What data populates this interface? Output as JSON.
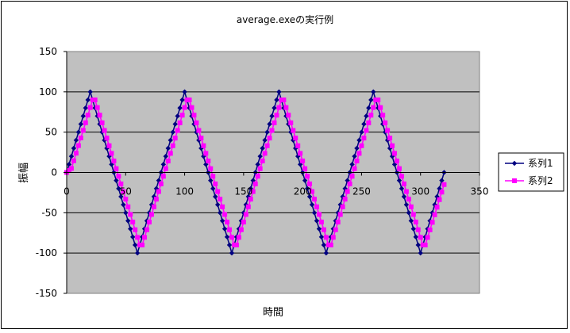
{
  "chart_data": {
    "type": "line",
    "title": "average.exeの実行例",
    "xlabel": "時間",
    "ylabel": "振幅",
    "xlim": [
      0,
      350
    ],
    "ylim": [
      -150,
      150
    ],
    "x_ticks": [
      0,
      50,
      100,
      150,
      200,
      250,
      300,
      350
    ],
    "y_ticks": [
      150,
      100,
      50,
      0,
      -50,
      -100,
      -150
    ],
    "grid": "horizontal",
    "legend_position": "right",
    "colors": {
      "plot_background": "#c0c0c0",
      "series1": "#000080",
      "series2": "#ff00ff"
    },
    "series": [
      {
        "name": "系列1",
        "marker": "diamond",
        "color": "#000080",
        "x": [
          0,
          20,
          60,
          100,
          140,
          180,
          220,
          260,
          300,
          320
        ],
        "y": [
          0,
          100,
          -100,
          100,
          -100,
          100,
          -100,
          100,
          -100,
          0
        ]
      },
      {
        "name": "系列2",
        "marker": "square",
        "color": "#ff00ff",
        "x": [
          0,
          4,
          22,
          24,
          62,
          64,
          102,
          104,
          142,
          144,
          182,
          184,
          222,
          224,
          262,
          264,
          302,
          304,
          320
        ],
        "y": [
          0,
          5,
          90,
          90,
          -90,
          -90,
          90,
          90,
          -90,
          -90,
          90,
          90,
          -90,
          -90,
          90,
          90,
          -90,
          -90,
          -15
        ]
      }
    ]
  }
}
